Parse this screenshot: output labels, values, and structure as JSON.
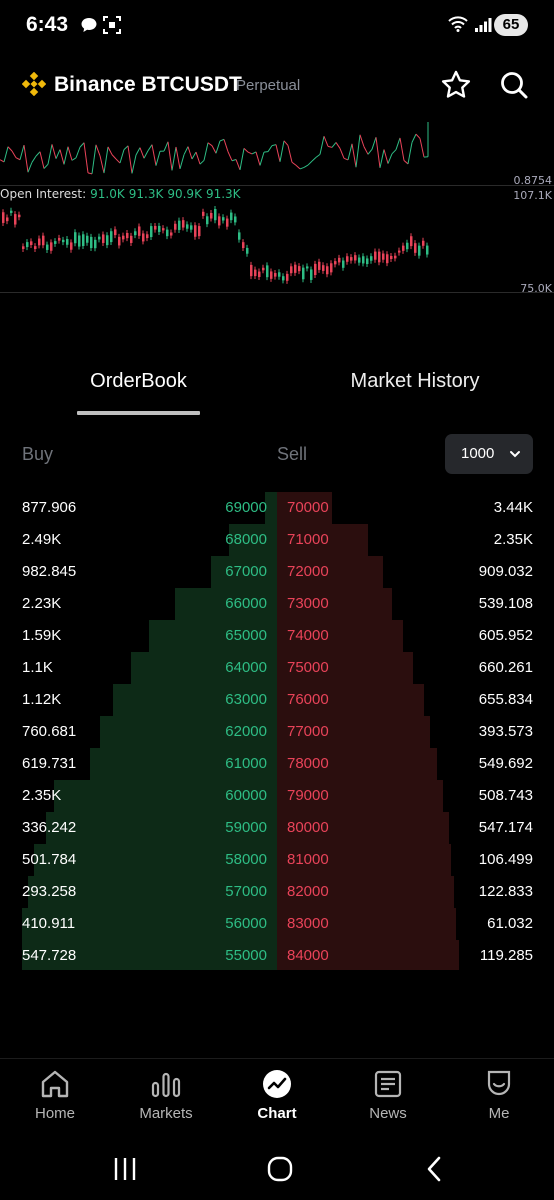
{
  "status_bar": {
    "time": "6:43",
    "battery": "65",
    "icons": [
      "chat-bubble-icon",
      "screenshot-icon",
      "wifi-icon",
      "signal-icon"
    ]
  },
  "header": {
    "logo": "binance-logo-icon",
    "title": "Binance BTCUSDT",
    "subtitle": "Perpetual",
    "actions": [
      "star-icon",
      "search-icon"
    ]
  },
  "top_chart": {
    "right_label": "0.8754"
  },
  "oi_chart": {
    "legend_label": "Open Interest:",
    "legend_values": [
      "91.0K",
      "91.3K",
      "90.9K",
      "91.3K"
    ],
    "top_label": "107.1K",
    "bottom_label": "75.0K"
  },
  "tabs": [
    {
      "label": "OrderBook",
      "active": true
    },
    {
      "label": "Market History",
      "active": false
    }
  ],
  "book_header": {
    "buy": "Buy",
    "sell": "Sell",
    "depth": "1000"
  },
  "orderbook": {
    "rows": [
      {
        "buy_qty": "877.906",
        "buy_price": "69000",
        "sell_price": "70000",
        "sell_qty": "3.44K"
      },
      {
        "buy_qty": "2.49K",
        "buy_price": "68000",
        "sell_price": "71000",
        "sell_qty": "2.35K"
      },
      {
        "buy_qty": "982.845",
        "buy_price": "67000",
        "sell_price": "72000",
        "sell_qty": "909.032"
      },
      {
        "buy_qty": "2.23K",
        "buy_price": "66000",
        "sell_price": "73000",
        "sell_qty": "539.108"
      },
      {
        "buy_qty": "1.59K",
        "buy_price": "65000",
        "sell_price": "74000",
        "sell_qty": "605.952"
      },
      {
        "buy_qty": "1.1K",
        "buy_price": "64000",
        "sell_price": "75000",
        "sell_qty": "660.261"
      },
      {
        "buy_qty": "1.12K",
        "buy_price": "63000",
        "sell_price": "76000",
        "sell_qty": "655.834"
      },
      {
        "buy_qty": "760.681",
        "buy_price": "62000",
        "sell_price": "77000",
        "sell_qty": "393.573"
      },
      {
        "buy_qty": "619.731",
        "buy_price": "61000",
        "sell_price": "78000",
        "sell_qty": "549.692"
      },
      {
        "buy_qty": "2.35K",
        "buy_price": "60000",
        "sell_price": "79000",
        "sell_qty": "508.743"
      },
      {
        "buy_qty": "336.242",
        "buy_price": "59000",
        "sell_price": "80000",
        "sell_qty": "547.174"
      },
      {
        "buy_qty": "501.784",
        "buy_price": "58000",
        "sell_price": "81000",
        "sell_qty": "106.499"
      },
      {
        "buy_qty": "293.258",
        "buy_price": "57000",
        "sell_price": "82000",
        "sell_qty": "122.833"
      },
      {
        "buy_qty": "410.911",
        "buy_price": "56000",
        "sell_price": "83000",
        "sell_qty": "61.032"
      },
      {
        "buy_qty": "547.728",
        "buy_price": "55000",
        "sell_price": "84000",
        "sell_qty": "119.285"
      }
    ]
  },
  "bottom_nav": [
    {
      "label": "Home",
      "icon": "home-icon",
      "active": false
    },
    {
      "label": "Markets",
      "icon": "markets-icon",
      "active": false
    },
    {
      "label": "Chart",
      "icon": "chart-icon",
      "active": true
    },
    {
      "label": "News",
      "icon": "news-icon",
      "active": false
    },
    {
      "label": "Me",
      "icon": "profile-icon",
      "active": false
    }
  ],
  "colors": {
    "buy": "#2ebd85",
    "sell": "#e94359",
    "buy_depth": "#0d2a17",
    "sell_depth": "#2b0e0e",
    "brand": "#f0b90b"
  }
}
